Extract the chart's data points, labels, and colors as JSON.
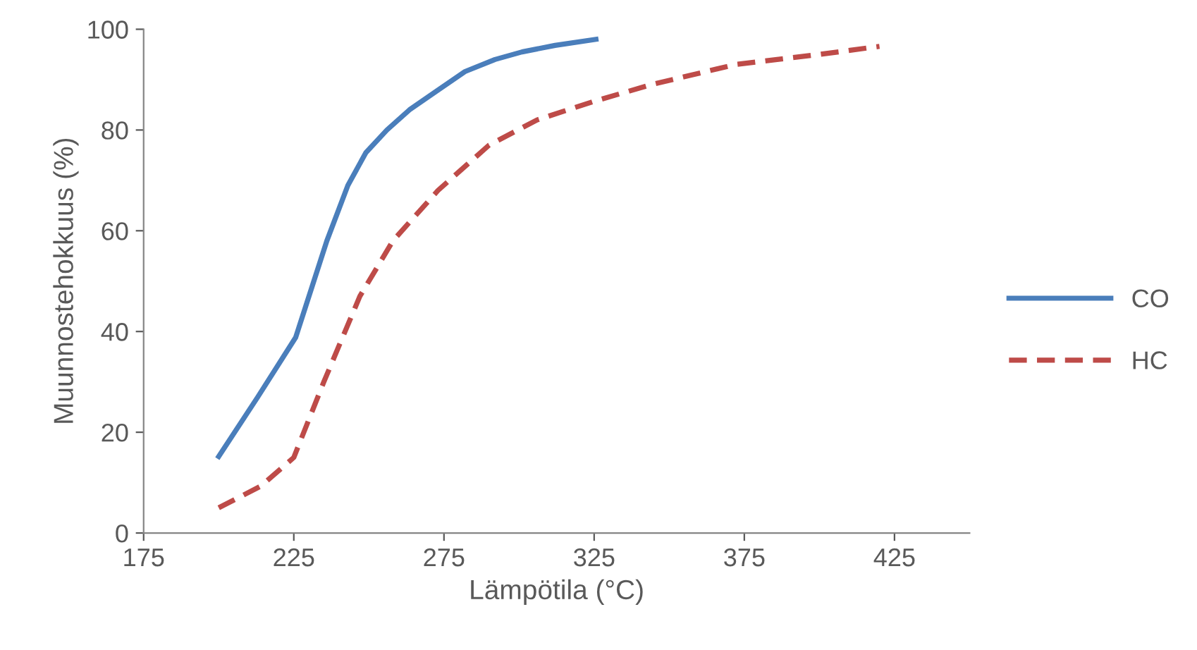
{
  "chart_data": {
    "type": "line",
    "xlabel": "Lämpötila (°C)",
    "ylabel": "Muunnostehokkuus (%)",
    "xlim": [
      175,
      450
    ],
    "xticks": [
      175,
      225,
      275,
      325,
      375,
      425
    ],
    "ylim": [
      0,
      100
    ],
    "yticks": [
      0,
      20,
      40,
      60,
      80,
      100
    ],
    "grid": false,
    "legend": "right",
    "marker": "none",
    "series": [
      {
        "name": "CO",
        "color": "#4a7ebb",
        "line_style": "solid",
        "x": [
          200,
          213,
          225.6,
          236,
          243,
          249,
          256,
          263.5,
          272,
          282,
          292,
          301,
          312,
          325.6
        ],
        "values": [
          15.2,
          27,
          38.8,
          58,
          69,
          75.5,
          80,
          84,
          87.5,
          91.6,
          94,
          95.5,
          96.8,
          98
        ]
      },
      {
        "name": "HC",
        "color": "#be4b48",
        "line_style": "dashed",
        "x": [
          200,
          214,
          225,
          235,
          247,
          258,
          273,
          290,
          306,
          325,
          344,
          372,
          400,
          420
        ],
        "values": [
          5,
          9.3,
          15,
          30,
          47,
          58,
          68,
          77,
          82,
          85.7,
          89,
          93,
          95,
          96.6
        ]
      }
    ]
  }
}
